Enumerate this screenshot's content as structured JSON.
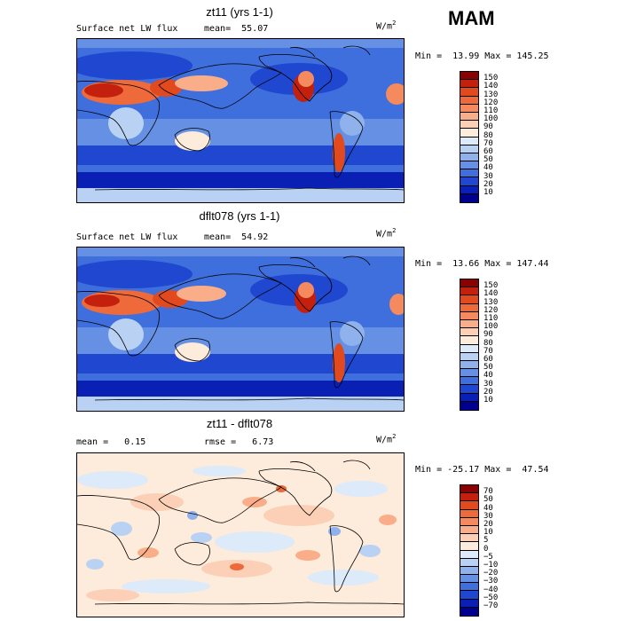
{
  "season": "MAM",
  "panels": [
    {
      "title": "zt11 (yrs 1-1)",
      "left_label": "Surface net LW flux",
      "right_label": "mean=  55.07",
      "units": "W/m",
      "units_sup": "2",
      "minmax": "Min =  13.99 Max = 145.25",
      "colorbar": {
        "labels": [
          "150",
          "140",
          "130",
          "120",
          "110",
          "100",
          "90",
          "80",
          "70",
          "60",
          "50",
          "40",
          "30",
          "20",
          "10"
        ],
        "colors": [
          "#8b0000",
          "#c4200e",
          "#e04a1e",
          "#ee6a3a",
          "#f58a5e",
          "#f9ad89",
          "#fbd0b6",
          "#fdebdb",
          "#dceaf9",
          "#b9d2f3",
          "#8fb1ec",
          "#6690e3",
          "#3f6fdc",
          "#1f47cf",
          "#0a20b5",
          "#000090"
        ]
      }
    },
    {
      "title": "dflt078 (yrs 1-1)",
      "left_label": "Surface net LW flux",
      "right_label": "mean=  54.92",
      "units": "W/m",
      "units_sup": "2",
      "minmax": "Min =  13.66 Max = 147.44",
      "colorbar": {
        "labels": [
          "150",
          "140",
          "130",
          "120",
          "110",
          "100",
          "90",
          "80",
          "70",
          "60",
          "50",
          "40",
          "30",
          "20",
          "10"
        ],
        "colors": [
          "#8b0000",
          "#c4200e",
          "#e04a1e",
          "#ee6a3a",
          "#f58a5e",
          "#f9ad89",
          "#fbd0b6",
          "#fdebdb",
          "#dceaf9",
          "#b9d2f3",
          "#8fb1ec",
          "#6690e3",
          "#3f6fdc",
          "#1f47cf",
          "#0a20b5",
          "#000090"
        ]
      }
    },
    {
      "title": "zt11 - dflt078",
      "left_label": "mean =   0.15",
      "right_label": "rmse =   6.73",
      "units": "W/m",
      "units_sup": "2",
      "minmax": "Min = -25.17 Max =  47.54",
      "colorbar": {
        "labels": [
          "70",
          "50",
          "40",
          "30",
          "20",
          "10",
          "5",
          "0",
          "−5",
          "−10",
          "−20",
          "−30",
          "−40",
          "−50",
          "−70"
        ],
        "colors": [
          "#8b0000",
          "#c4200e",
          "#e04a1e",
          "#ee6a3a",
          "#f58a5e",
          "#f9ad89",
          "#fbd0b6",
          "#fdebdb",
          "#dceaf9",
          "#b9d2f3",
          "#8fb1ec",
          "#6690e3",
          "#3f6fdc",
          "#1f47cf",
          "#0a20b5",
          "#000090"
        ]
      }
    }
  ]
}
